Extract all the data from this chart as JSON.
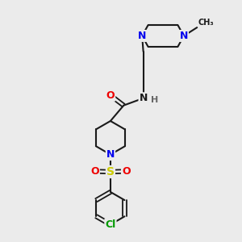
{
  "background_color": "#ebebeb",
  "bond_color": "#1a1a1a",
  "atom_colors": {
    "N_blue": "#0000ee",
    "N_amide": "#1a1a1a",
    "O": "#ee0000",
    "S": "#cccc00",
    "Cl": "#009900",
    "C": "#1a1a1a",
    "H": "#666666"
  },
  "figsize": [
    3.0,
    3.0
  ],
  "dpi": 100,
  "xlim": [
    0,
    10
  ],
  "ylim": [
    0,
    10
  ]
}
